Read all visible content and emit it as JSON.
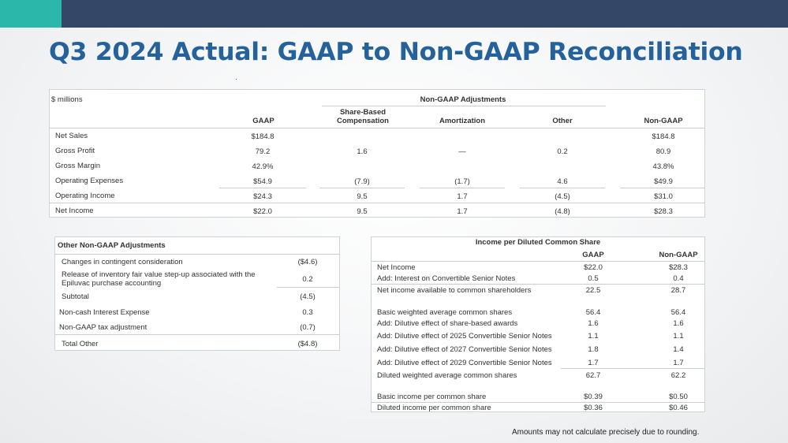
{
  "title": "Q3 2024 Actual: GAAP to Non-GAAP Reconciliation",
  "main_table": {
    "units_label": "$ millions",
    "group_header": "Non-GAAP Adjustments",
    "columns": [
      "GAAP",
      "Share-Based\nCompensation",
      "Amortization",
      "Other",
      "Non-GAAP"
    ],
    "col_sbc_line1": "Share-Based",
    "col_sbc_line2": "Compensation",
    "rows": [
      {
        "label": "Net Sales",
        "gaap": "$184.8",
        "sbc": "",
        "amort": "",
        "other": "",
        "nongaap": "$184.8"
      },
      {
        "label": "Gross Profit",
        "gaap": "79.2",
        "sbc": "1.6",
        "amort": "—",
        "other": "0.2",
        "nongaap": "80.9"
      },
      {
        "label": "Gross Margin",
        "gaap": "42.9%",
        "sbc": "",
        "amort": "",
        "other": "",
        "nongaap": "43.8%"
      },
      {
        "label": "Operating Expenses",
        "gaap": "$54.9",
        "sbc": "(7.9)",
        "amort": "(1.7)",
        "other": "4.6",
        "nongaap": "$49.9"
      },
      {
        "label": "Operating Income",
        "gaap": "$24.3",
        "sbc": "9.5",
        "amort": "1.7",
        "other": "(4.5)",
        "nongaap": "$31.0"
      },
      {
        "label": "Net Income",
        "gaap": "$22.0",
        "sbc": "9.5",
        "amort": "1.7",
        "other": "(4.8)",
        "nongaap": "$28.3"
      }
    ]
  },
  "other_adjustments": {
    "title": "Other Non-GAAP Adjustments",
    "rows": [
      {
        "label": "Changes in contingent consideration",
        "value": "($4.6)"
      },
      {
        "label_line1": "Release of inventory fair value step-up associated with the",
        "label_line2": "Epiluvac purchase accounting",
        "value": "0.2"
      },
      {
        "label": "Subtotal",
        "value": "(4.5)"
      },
      {
        "label": "Non-cash Interest Expense",
        "value": "0.3"
      },
      {
        "label": "Non-GAAP tax adjustment",
        "value": "(0.7)"
      },
      {
        "label": "Total Other",
        "value": "($4.8)"
      }
    ]
  },
  "eps_table": {
    "title": "Income per Diluted Common Share",
    "col_gaap": "GAAP",
    "col_nongaap": "Non-GAAP",
    "rows": [
      {
        "label": "Net Income",
        "gaap": "$22.0",
        "nongaap": "$28.3"
      },
      {
        "label": "Add: Interest on Convertible Senior Notes",
        "gaap": "0.5",
        "nongaap": "0.4"
      },
      {
        "label": "Net income available to common shareholders",
        "gaap": "22.5",
        "nongaap": "28.7"
      },
      {
        "label": "Basic weighted average common shares",
        "gaap": "56.4",
        "nongaap": "56.4"
      },
      {
        "label": "Add: Dilutive effect of share-based awards",
        "gaap": "1.6",
        "nongaap": "1.6"
      },
      {
        "label": "Add: Dilutive effect of 2025 Convertible Senior Notes",
        "gaap": "1.1",
        "nongaap": "1.1"
      },
      {
        "label": "Add: Dilutive effect of 2027 Convertible Senior Notes",
        "gaap": "1.8",
        "nongaap": "1.4"
      },
      {
        "label": "Add: Dilutive effect of 2029 Convertible Senior Notes",
        "gaap": "1.7",
        "nongaap": "1.7"
      },
      {
        "label": "Diluted weighted average common shares",
        "gaap": "62.7",
        "nongaap": "62.2"
      },
      {
        "label": "Basic income per common share",
        "gaap": "$0.39",
        "nongaap": "$0.50"
      },
      {
        "label": "Diluted income per common share",
        "gaap": "$0.36",
        "nongaap": "$0.46"
      }
    ]
  },
  "footnote": "Amounts may not calculate precisely due to rounding."
}
